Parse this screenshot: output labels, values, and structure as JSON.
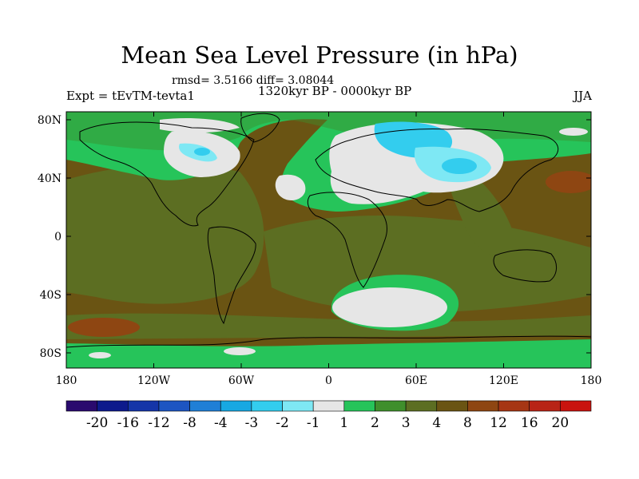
{
  "title": "Mean Sea Level Pressure (in hPa)",
  "stats_line": "rmsd= 3.5166 diff= 3.08044",
  "experiment": "Expt = tEvTM-tevta1",
  "period": "1320kyr BP - 0000kyr BP",
  "season": "JJA",
  "lat_labels": [
    "80N",
    "40N",
    "0",
    "40S",
    "80S"
  ],
  "lon_labels": [
    "180",
    "120W",
    "60W",
    "0",
    "60E",
    "120E",
    "180"
  ],
  "colorbar": {
    "labels": [
      "-20",
      "-16",
      "-12",
      "-8",
      "-4",
      "-3",
      "-2",
      "-1",
      "1",
      "2",
      "3",
      "4",
      "8",
      "12",
      "16",
      "20"
    ],
    "colors": [
      "#2a0a6e",
      "#0d1a8c",
      "#1535a8",
      "#1d55c2",
      "#1f7fd6",
      "#17a8e2",
      "#33cdee",
      "#7ee8f4",
      "#e6e6e6",
      "#26c45a",
      "#3f8f2c",
      "#5c6e22",
      "#6a5413",
      "#8e4612",
      "#a63614",
      "#b82416",
      "#c9130f"
    ]
  },
  "palette": {
    "land_brown": "#6a5413",
    "olive": "#5c6e22",
    "dark_green": "#3f8f2c",
    "green": "#26c45a",
    "white": "#e6e6e6",
    "cyan": "#33cdee",
    "light_cyan": "#7ee8f4",
    "orange_brown": "#8e4612"
  }
}
